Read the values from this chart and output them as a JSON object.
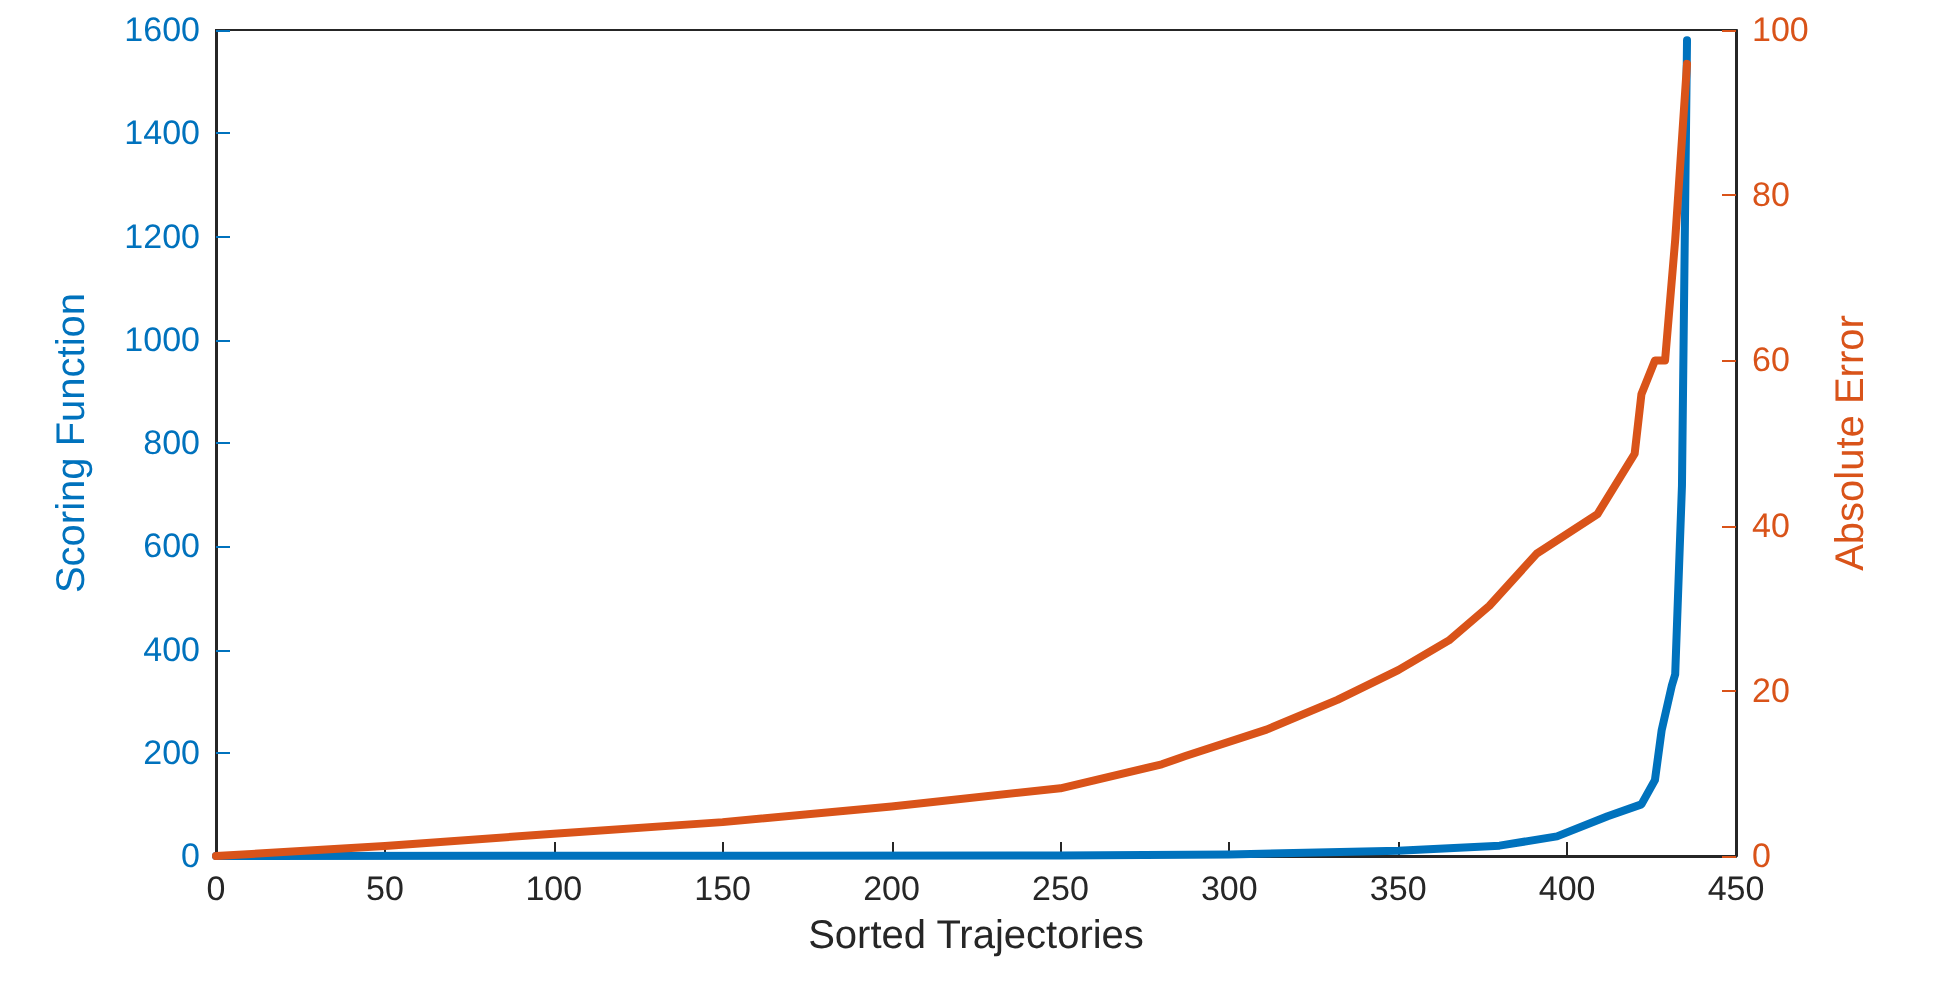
{
  "chart_data": {
    "type": "line",
    "xlabel": "Sorted Trajectories",
    "ylabel": "Scoring Function",
    "y2label": "Absolute Error",
    "xlim": [
      0,
      450
    ],
    "xticks": [
      0,
      50,
      100,
      150,
      200,
      250,
      300,
      350,
      400,
      450
    ],
    "ylim": [
      0,
      1600
    ],
    "yticks": [
      0,
      200,
      400,
      600,
      800,
      1000,
      1200,
      1400,
      1600
    ],
    "y2lim": [
      0,
      100
    ],
    "y2ticks": [
      0,
      20,
      40,
      60,
      80,
      100
    ],
    "grid": false,
    "marker": "none",
    "line_style": "solid",
    "series": [
      {
        "color": "#0072bd",
        "x": [
          0,
          250,
          300,
          350,
          380,
          397,
          412,
          422,
          426,
          428,
          431,
          432,
          434,
          435.5
        ],
        "values": [
          0,
          1,
          3,
          10,
          20,
          38,
          77,
          100,
          147,
          244,
          330,
          352,
          717,
          1580
        ]
      },
      {
        "color": "#d95319",
        "axis": "y2",
        "x": [
          0,
          50,
          100,
          150,
          200,
          250,
          280,
          287,
          311,
          332,
          350,
          365,
          377,
          391,
          409,
          420,
          422,
          426,
          429,
          432,
          435.5
        ],
        "values": [
          0,
          1.2,
          2.7,
          4.1,
          6,
          8.2,
          11.1,
          12.1,
          15.3,
          18.9,
          22.5,
          26.1,
          30.3,
          36.6,
          41.4,
          48.7,
          55.9,
          60,
          60,
          74.6,
          95.9
        ]
      }
    ]
  }
}
